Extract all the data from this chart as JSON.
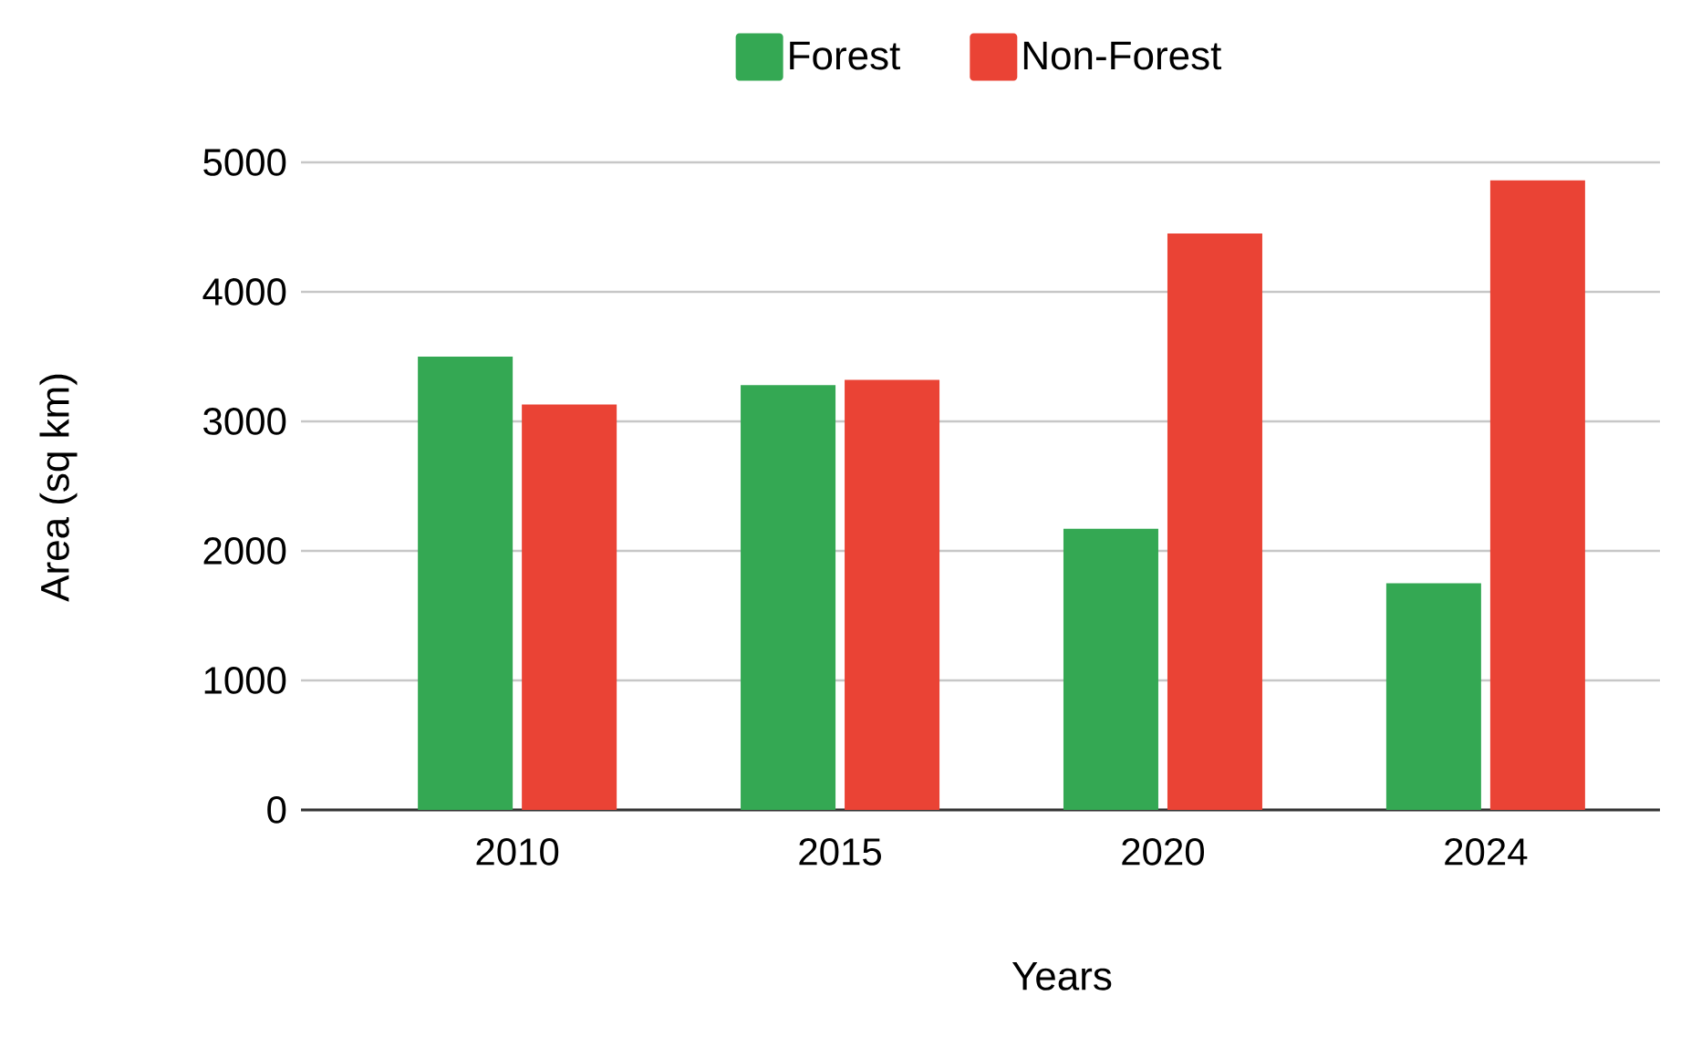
{
  "chart_data": {
    "type": "bar",
    "xlabel": "Years",
    "ylabel": "Area (sq km)",
    "categories": [
      "2010",
      "2015",
      "2020",
      "2024"
    ],
    "series": [
      {
        "name": "Forest",
        "color": "#34a853",
        "values": [
          3500,
          3280,
          2170,
          1750
        ]
      },
      {
        "name": "Non-Forest",
        "color": "#ea4335",
        "values": [
          3130,
          3320,
          4450,
          4860
        ]
      }
    ],
    "ylim": [
      0,
      5000
    ],
    "yticks": [
      0,
      1000,
      2000,
      3000,
      4000,
      5000
    ],
    "grid": "y",
    "legend": "top"
  }
}
